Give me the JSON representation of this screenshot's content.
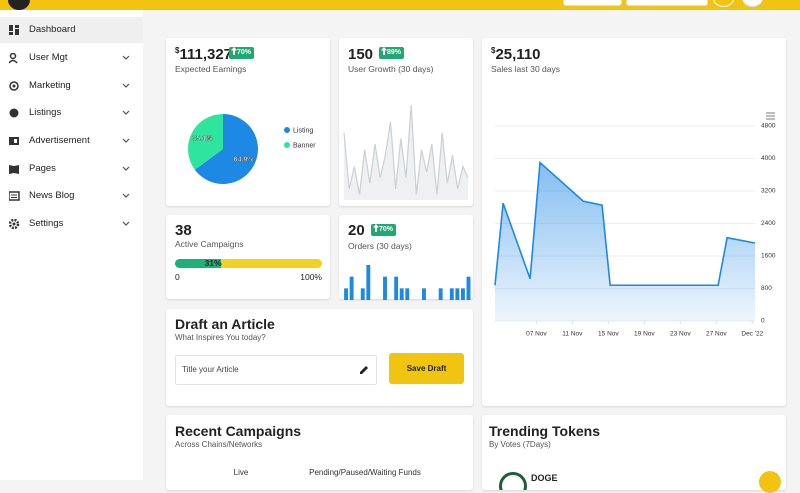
{
  "sidebar": {
    "items": [
      "Dashboard",
      "User Mgt",
      "Marketing",
      "Listings",
      "Advertisement",
      "Pages",
      "News Blog",
      "Settings"
    ]
  },
  "cards": {
    "earnings": {
      "currency": "$",
      "amount": "111,327",
      "change": "70%",
      "label": "Expected Earnings"
    },
    "user_growth": {
      "amount": "150",
      "change": "89%",
      "label": "User Growth (30 days)"
    },
    "sales": {
      "currency": "$",
      "amount": "25,110",
      "label": "Sales last 30 days"
    },
    "campaigns": {
      "amount": "38",
      "label": "Active Campaigns",
      "progress": 31,
      "progress_label": "31%",
      "progress_min": 0,
      "progress_max": {
        "value": 100,
        "label": "100%"
      }
    },
    "orders": {
      "amount": "20",
      "change": "70%",
      "label": "Orders (30 days)"
    },
    "draft": {
      "title": "Draft an Article",
      "subtitle": "What Inspires You today?",
      "placeholder": "Title your Article",
      "button": "Save Draft"
    },
    "recent": {
      "title": "Recent Campaigns",
      "subtitle": "Across Chains/Networks",
      "columns": [
        "Live",
        "Pending/Paused/Waiting Funds"
      ]
    },
    "tokens": {
      "title": "Trending Tokens",
      "subtitle": "By Votes (7Days)",
      "items": [
        "DOGE"
      ]
    }
  },
  "chart_data": [
    {
      "type": "pie",
      "categories": [
        "Listing",
        "Banner"
      ],
      "values": [
        64.9,
        35.1
      ],
      "value_labels": [
        "64.9%",
        "35.1%"
      ],
      "colors": [
        "#1e88e5",
        "#2ee59d"
      ],
      "legend": "right"
    },
    {
      "type": "area",
      "values": [
        60,
        10,
        30,
        5,
        45,
        15,
        50,
        20,
        40,
        70,
        10,
        55,
        20,
        85,
        5,
        45,
        25,
        50,
        5,
        60,
        15,
        40,
        10,
        30,
        20
      ],
      "color": "#c9d0d6"
    },
    {
      "type": "area",
      "x": [
        2.4,
        3.3,
        6.3,
        7.4,
        12.2,
        14.3,
        15.2,
        27.2,
        28.2,
        31.3
      ],
      "values": [
        880,
        2900,
        1040,
        3900,
        2950,
        2850,
        880,
        880,
        2050,
        1920
      ],
      "color": "#1e88e5",
      "xlim": [
        2.4,
        31.3
      ],
      "xticks": [
        {
          "value": 7,
          "label": "07 Nov"
        },
        {
          "value": 11,
          "label": "11 Nov"
        },
        {
          "value": 15,
          "label": "15 Nov"
        },
        {
          "value": 19,
          "label": "19 Nov"
        },
        {
          "value": 23,
          "label": "23 Nov"
        },
        {
          "value": 27,
          "label": "27 Nov"
        },
        {
          "value": 31,
          "label": "Dec '22"
        }
      ],
      "ylim": [
        0,
        4800
      ],
      "yticks": [
        0,
        800,
        1600,
        2400,
        3200,
        4000,
        4800
      ],
      "grid": true
    },
    {
      "type": "bar",
      "values": [
        1,
        2,
        0,
        1,
        3,
        0,
        0,
        2,
        0,
        2,
        1,
        1,
        0,
        0,
        1,
        0,
        0,
        1,
        0,
        1,
        1,
        1,
        2
      ],
      "color": "#1e88e5"
    }
  ]
}
